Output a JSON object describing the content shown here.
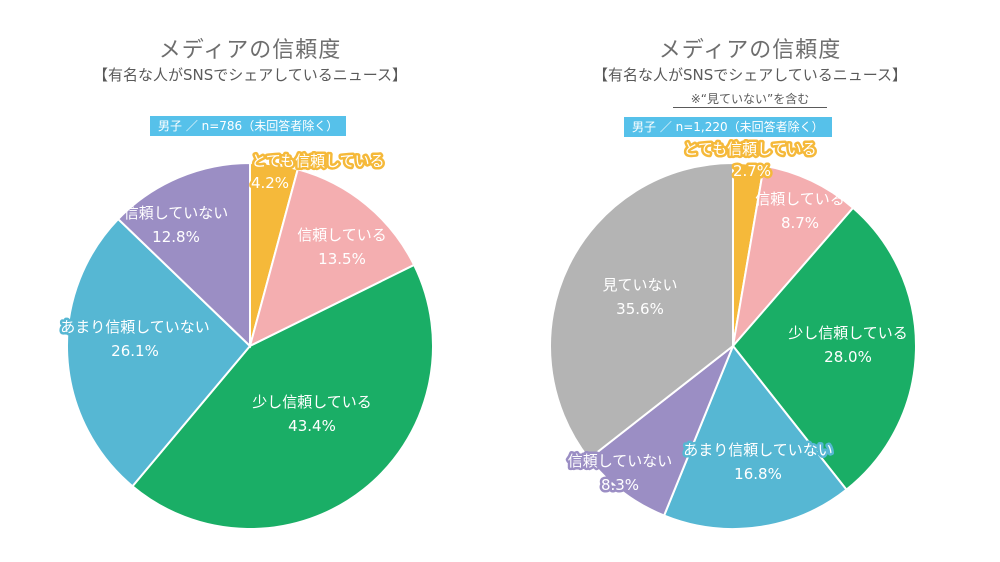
{
  "chart_data": [
    {
      "type": "pie",
      "title": "メディアの信頼度",
      "subtitle": "【有名な人がSNSでシェアしているニュース】",
      "note": "",
      "sample": "男子 ／ n=786（未回答者除く）",
      "slices": [
        {
          "label": "とても信頼している",
          "value": 4.2,
          "display": "4.2%",
          "color": "#f5b93a"
        },
        {
          "label": "信頼している",
          "value": 13.5,
          "display": "13.5%",
          "color": "#f4aeb0"
        },
        {
          "label": "少し信頼している",
          "value": 43.4,
          "display": "43.4%",
          "color": "#1aae66"
        },
        {
          "label": "あまり信頼していない",
          "value": 26.1,
          "display": "26.1%",
          "color": "#56b7d3"
        },
        {
          "label": "信頼していない",
          "value": 12.8,
          "display": "12.8%",
          "color": "#9b8ec4"
        }
      ]
    },
    {
      "type": "pie",
      "title": "メディアの信頼度",
      "subtitle": "【有名な人がSNSでシェアしているニュース】",
      "note": "※“見ていない”を含む",
      "sample": "男子 ／ n=1,220（未回答者除く）",
      "slices": [
        {
          "label": "とても信頼している",
          "value": 2.7,
          "display": "2.7%",
          "color": "#f5b93a"
        },
        {
          "label": "信頼している",
          "value": 8.7,
          "display": "8.7%",
          "color": "#f4aeb0"
        },
        {
          "label": "少し信頼している",
          "value": 28.0,
          "display": "28.0%",
          "color": "#1aae66"
        },
        {
          "label": "あまり信頼していない",
          "value": 16.8,
          "display": "16.8%",
          "color": "#56b7d3"
        },
        {
          "label": "信頼していない",
          "value": 8.3,
          "display": "8.3%",
          "color": "#9b8ec4"
        },
        {
          "label": "見ていない",
          "value": 35.6,
          "display": "35.6%",
          "color": "#b4b4b4"
        }
      ]
    }
  ]
}
